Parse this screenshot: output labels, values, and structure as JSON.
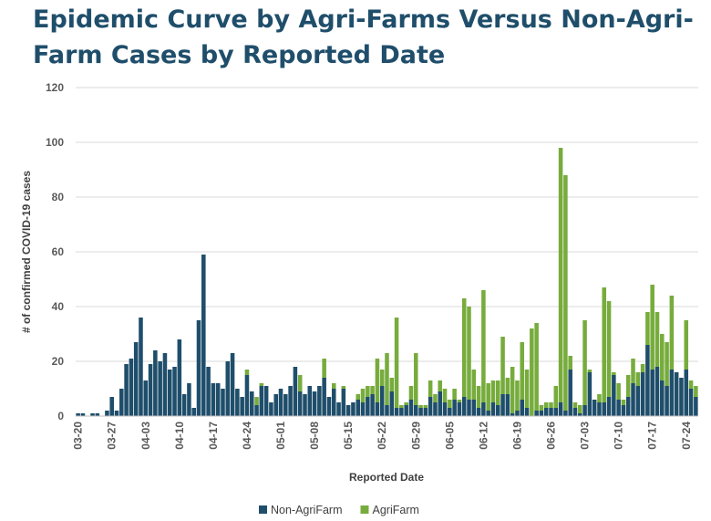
{
  "chart_data": {
    "type": "bar",
    "stacked": true,
    "title": "Epidemic Curve by Agri-Farms Versus Non-Agri-Farm Cases by Reported Date",
    "xlabel": "Reported Date",
    "ylabel": "# of confirmed COVID-19 cases",
    "ylim": [
      0,
      120
    ],
    "yticks": [
      0,
      20,
      40,
      60,
      80,
      100,
      120
    ],
    "grid": "horizontal",
    "legend_position": "bottom",
    "x_start": "03-20",
    "x_end": "07-31",
    "xtick_labels": [
      "03-20",
      "03-27",
      "04-03",
      "04-10",
      "04-17",
      "04-24",
      "05-01",
      "05-08",
      "05-15",
      "05-22",
      "05-29",
      "06-05",
      "06-12",
      "06-19",
      "06-26",
      "07-03",
      "07-10",
      "07-17",
      "07-24"
    ],
    "series": [
      {
        "name": "Non-AgriFarm",
        "color": "#1f4e6b",
        "values": [
          1,
          1,
          0,
          1,
          1,
          0,
          2,
          7,
          2,
          10,
          19,
          21,
          27,
          36,
          13,
          19,
          24,
          20,
          23,
          17,
          18,
          28,
          8,
          12,
          3,
          35,
          59,
          18,
          12,
          12,
          10,
          20,
          23,
          10,
          7,
          15,
          9,
          4,
          11,
          11,
          5,
          8,
          10,
          8,
          11,
          18,
          9,
          8,
          11,
          9,
          11,
          14,
          7,
          10,
          5,
          10,
          4,
          5,
          6,
          5,
          7,
          8,
          5,
          11,
          4,
          9,
          3,
          3,
          4,
          6,
          4,
          3,
          3,
          7,
          5,
          9,
          5,
          3,
          6,
          5,
          7,
          6,
          6,
          3,
          5,
          2,
          5,
          4,
          8,
          8,
          1,
          2,
          6,
          3,
          0,
          2,
          2,
          3,
          3,
          3,
          5,
          2,
          17,
          3,
          1,
          4,
          16,
          6,
          5,
          5,
          7,
          15,
          6,
          4,
          7,
          12,
          11,
          16,
          26,
          17,
          18,
          13,
          11,
          17,
          16,
          14,
          17,
          10,
          7
        ]
      },
      {
        "name": "AgriFarm",
        "color": "#77ac3d",
        "values": [
          0,
          0,
          0,
          0,
          0,
          0,
          0,
          0,
          0,
          0,
          0,
          0,
          0,
          0,
          0,
          0,
          0,
          0,
          0,
          0,
          0,
          0,
          0,
          0,
          0,
          0,
          0,
          0,
          0,
          0,
          0,
          0,
          0,
          0,
          0,
          2,
          0,
          3,
          1,
          0,
          0,
          0,
          0,
          0,
          0,
          0,
          6,
          0,
          0,
          0,
          0,
          7,
          0,
          2,
          0,
          1,
          0,
          0,
          2,
          5,
          4,
          3,
          16,
          6,
          19,
          5,
          33,
          1,
          1,
          5,
          19,
          1,
          1,
          6,
          3,
          4,
          5,
          3,
          4,
          1,
          36,
          34,
          11,
          8,
          41,
          10,
          8,
          9,
          21,
          6,
          17,
          11,
          21,
          14,
          32,
          32,
          2,
          2,
          2,
          8,
          93,
          86,
          5,
          2,
          3,
          31,
          1,
          0,
          3,
          42,
          35,
          1,
          6,
          2,
          8,
          9,
          5,
          3,
          12,
          31,
          20,
          17,
          16,
          27,
          0,
          0,
          18,
          3,
          4
        ]
      }
    ]
  }
}
